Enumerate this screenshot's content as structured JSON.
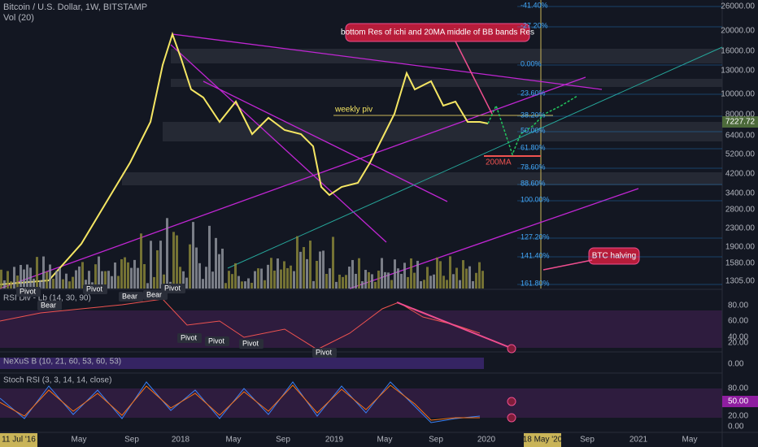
{
  "header": {
    "title": "Bitcoin / U.S. Dollar, 1W, BITSTAMP",
    "volume": "Vol (20)"
  },
  "price_axis": {
    "labels": [
      "26000.00",
      "20000.00",
      "16000.00",
      "13000.00",
      "10000.00",
      "8000.00",
      "6400.00",
      "5200.00",
      "4200.00",
      "3400.00",
      "2800.00",
      "2300.00",
      "1900.00",
      "1580.00",
      "1305.00"
    ],
    "current": "7227.72"
  },
  "time_axis": {
    "labels": [
      "11 Jul '16",
      "May",
      "Sep",
      "2018",
      "May",
      "Sep",
      "2019",
      "May",
      "Sep",
      "2020",
      "18 May '20",
      "Sep",
      "2021",
      "May"
    ]
  },
  "fib_labels": [
    "-41.40%",
    "-27.20%",
    "0.00%",
    "23.60%",
    "38.20%",
    "50.00%",
    "61.80%",
    "78.60%",
    "88.60%",
    "100.00%",
    "127.20%",
    "141.40%",
    "161.80%"
  ],
  "annotations": {
    "callout": "bottom Res of ichi and 20MA middle of BB bands Res",
    "weekly_pivot": "weekly piv",
    "ma200": "200MA",
    "halving": "BTC halving"
  },
  "rsi": {
    "title": "RSI Div - Lb (14, 30, 90)",
    "axis": [
      "80.00",
      "60.00",
      "40.00",
      "20.00"
    ],
    "tags": [
      "Pivot",
      "Bear",
      "Pivot",
      "Bear",
      "Bear",
      "Pivot",
      "Pivot",
      "Pivot",
      "Pivot",
      "Pivot"
    ]
  },
  "nexus": {
    "title": "NeXuS B (10, 21, 60, 53, 60, 53)",
    "axis": [
      "0.00"
    ]
  },
  "stoch": {
    "title": "Stoch RSI (3, 3, 14, 14, close)",
    "axis": [
      "80.00",
      "50.00",
      "20.00",
      "0.00"
    ]
  }
}
